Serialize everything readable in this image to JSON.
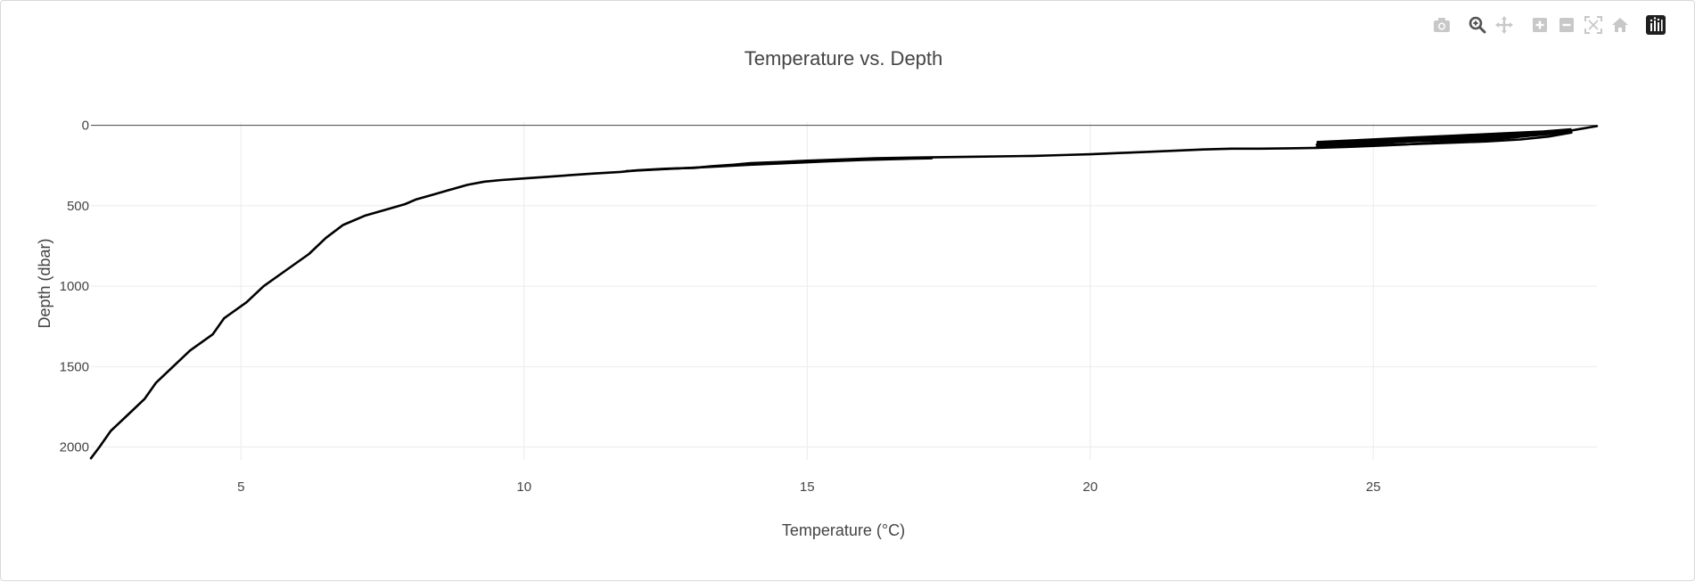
{
  "modebar": {
    "buttons": [
      {
        "name": "camera-icon",
        "label": "Download plot as a png",
        "active": false
      },
      {
        "name": "zoom-icon",
        "label": "Zoom",
        "active": true
      },
      {
        "name": "pan-icon",
        "label": "Pan",
        "active": false
      },
      {
        "name": "zoom-in-icon",
        "label": "Zoom in",
        "active": false
      },
      {
        "name": "zoom-out-icon",
        "label": "Zoom out",
        "active": false
      },
      {
        "name": "autoscale-icon",
        "label": "Autoscale",
        "active": false
      },
      {
        "name": "home-icon",
        "label": "Reset axes",
        "active": false
      },
      {
        "name": "plotly-logo-icon",
        "label": "Produced with Plotly",
        "active": false
      }
    ],
    "colors": {
      "inactive": "#c8c8c8",
      "active": "#555555",
      "logo_bg": "#1f1f1f"
    }
  },
  "chart_data": {
    "type": "line",
    "title": "Temperature vs. Depth",
    "xlabel": "Temperature (°C)",
    "ylabel": "Depth (dbar)",
    "xlim": [
      2.35,
      28.95
    ],
    "ylim": [
      2080,
      -20
    ],
    "y_reversed": true,
    "xticks": [
      5,
      10,
      15,
      20,
      25
    ],
    "yticks": [
      0,
      500,
      1000,
      1500,
      2000
    ],
    "grid": true,
    "zero_line": true,
    "line_color": "#000000",
    "series": [
      {
        "x": [
          2.35,
          2.5,
          2.7,
          3.0,
          3.3,
          3.5,
          3.8,
          4.1,
          4.5,
          4.7,
          5.1,
          5.4,
          5.8,
          6.2,
          6.5,
          6.8,
          7.2,
          7.6,
          7.9,
          8.1,
          8.4,
          8.7,
          9.0,
          9.3,
          9.6,
          10.0,
          10.4,
          10.8,
          11.2,
          11.7,
          12.0,
          12.5,
          13.0,
          13.3,
          13.7,
          14.0,
          14.5,
          15.0,
          15.6,
          16.2,
          17.0,
          18.0,
          19.0,
          19.5,
          20.0,
          20.5,
          21.0,
          21.5,
          22.0,
          22.5,
          23.0,
          23.5,
          24.0,
          24.5,
          25.0,
          25.5,
          26.0,
          26.5,
          27.0,
          27.5,
          28.0,
          28.4,
          28.7,
          28.95
        ],
        "y": [
          2070,
          2000,
          1900,
          1800,
          1700,
          1600,
          1500,
          1400,
          1300,
          1200,
          1100,
          1000,
          900,
          800,
          700,
          620,
          560,
          520,
          490,
          460,
          430,
          400,
          370,
          350,
          340,
          330,
          320,
          310,
          300,
          290,
          280,
          270,
          265,
          255,
          245,
          235,
          228,
          220,
          212,
          205,
          200,
          195,
          190,
          185,
          180,
          172,
          165,
          158,
          150,
          145,
          145,
          143,
          140,
          135,
          128,
          120,
          110,
          100,
          90,
          75,
          55,
          38,
          20,
          5
        ]
      },
      {
        "x": [
          24.0,
          24.6,
          25.2,
          25.8,
          26.4,
          27.0,
          27.6,
          28.1,
          28.5
        ],
        "y": [
          120,
          110,
          105,
          98,
          90,
          82,
          70,
          55,
          35
        ]
      },
      {
        "x": [
          24.0,
          24.6,
          25.2,
          25.8,
          26.4,
          27.0,
          27.6,
          28.1,
          28.5
        ],
        "y": [
          135,
          130,
          122,
          115,
          108,
          100,
          88,
          70,
          45
        ]
      },
      {
        "x": [
          11.8,
          12.6,
          13.3,
          14.0,
          14.6,
          15.3,
          16.0,
          16.8,
          17.2
        ],
        "y": [
          285,
          270,
          258,
          245,
          236,
          225,
          215,
          208,
          205
        ]
      }
    ]
  }
}
